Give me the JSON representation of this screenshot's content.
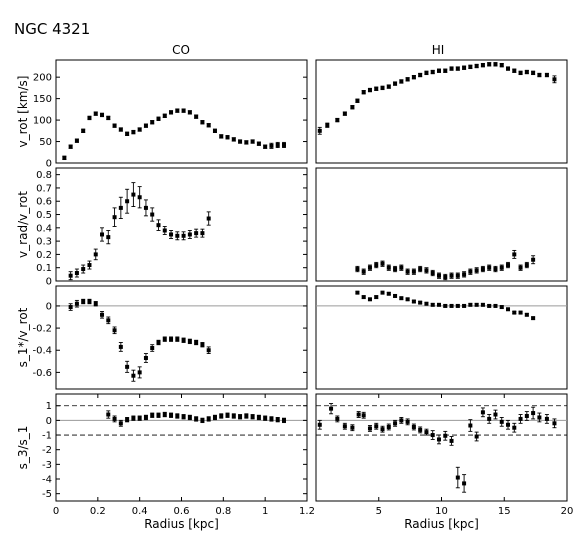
{
  "figure": {
    "title": "NGC 4321",
    "column_titles": [
      "CO",
      "HI"
    ],
    "row_ylabels": [
      "v_rot [km/s]",
      "v_rad/v_rot",
      "s_1*/v_rot",
      "s_3/s_1"
    ],
    "xlabel": "Radius [kpc]"
  },
  "chart_data": [
    {
      "id": "co-vrot",
      "type": "scatter",
      "column": "CO",
      "row": 0,
      "ylabel": "v_rot [km/s]",
      "xlim": [
        0,
        1.2
      ],
      "ylim": [
        0,
        240
      ],
      "yticks": [
        0,
        50,
        100,
        150,
        200
      ],
      "xticks": [],
      "x": [
        0.04,
        0.07,
        0.1,
        0.13,
        0.16,
        0.19,
        0.22,
        0.25,
        0.28,
        0.31,
        0.34,
        0.37,
        0.4,
        0.43,
        0.46,
        0.49,
        0.52,
        0.55,
        0.58,
        0.61,
        0.64,
        0.67,
        0.7,
        0.73,
        0.76,
        0.79,
        0.82,
        0.85,
        0.88,
        0.91,
        0.94,
        0.97,
        1.0,
        1.03,
        1.06,
        1.09
      ],
      "y": [
        12,
        38,
        52,
        75,
        105,
        115,
        112,
        105,
        87,
        78,
        68,
        72,
        78,
        87,
        95,
        103,
        110,
        118,
        122,
        122,
        118,
        108,
        95,
        88,
        75,
        62,
        60,
        55,
        50,
        48,
        50,
        45,
        38,
        40,
        42,
        42
      ],
      "yerr": [
        4,
        4,
        4,
        4,
        4,
        4,
        4,
        4,
        4,
        4,
        4,
        4,
        4,
        4,
        4,
        4,
        4,
        4,
        4,
        4,
        4,
        4,
        4,
        4,
        4,
        4,
        4,
        4,
        4,
        4,
        4,
        4,
        4,
        6,
        6,
        6
      ]
    },
    {
      "id": "hi-vrot",
      "type": "scatter",
      "column": "HI",
      "row": 0,
      "xlim": [
        0,
        20
      ],
      "ylim": [
        0,
        240
      ],
      "xticks": [],
      "yticks": [],
      "x": [
        0.3,
        0.9,
        1.7,
        2.3,
        2.9,
        3.3,
        3.8,
        4.3,
        4.8,
        5.3,
        5.8,
        6.3,
        6.8,
        7.3,
        7.8,
        8.3,
        8.8,
        9.3,
        9.8,
        10.3,
        10.8,
        11.3,
        11.8,
        12.3,
        12.8,
        13.3,
        13.8,
        14.3,
        14.8,
        15.3,
        15.8,
        16.3,
        16.8,
        17.3,
        17.8,
        18.4,
        19.0
      ],
      "y": [
        75,
        88,
        100,
        115,
        130,
        145,
        165,
        170,
        173,
        175,
        178,
        185,
        190,
        195,
        200,
        205,
        210,
        212,
        215,
        215,
        220,
        220,
        222,
        224,
        226,
        228,
        230,
        230,
        228,
        220,
        215,
        210,
        212,
        210,
        205,
        205,
        195
      ],
      "yerr": [
        8,
        5,
        4,
        4,
        4,
        4,
        4,
        4,
        4,
        4,
        4,
        4,
        4,
        4,
        4,
        4,
        4,
        4,
        4,
        4,
        4,
        4,
        4,
        4,
        4,
        4,
        4,
        4,
        4,
        4,
        4,
        4,
        4,
        4,
        4,
        4,
        8
      ]
    },
    {
      "id": "co-vrad",
      "type": "scatter",
      "column": "CO",
      "row": 1,
      "ylabel": "v_rad/v_rot",
      "xlim": [
        0,
        1.2
      ],
      "ylim": [
        0,
        0.85
      ],
      "yticks": [
        0.0,
        0.1,
        0.2,
        0.3,
        0.4,
        0.5,
        0.6,
        0.7,
        0.8
      ],
      "xticks": [],
      "x": [
        0.07,
        0.1,
        0.13,
        0.16,
        0.19,
        0.22,
        0.25,
        0.28,
        0.31,
        0.34,
        0.37,
        0.4,
        0.43,
        0.46,
        0.49,
        0.52,
        0.55,
        0.58,
        0.61,
        0.64,
        0.67,
        0.7,
        0.73
      ],
      "y": [
        0.04,
        0.06,
        0.09,
        0.12,
        0.2,
        0.35,
        0.33,
        0.48,
        0.55,
        0.6,
        0.65,
        0.63,
        0.55,
        0.5,
        0.42,
        0.38,
        0.35,
        0.34,
        0.34,
        0.35,
        0.36,
        0.36,
        0.47
      ],
      "yerr": [
        0.03,
        0.03,
        0.03,
        0.03,
        0.04,
        0.05,
        0.05,
        0.07,
        0.08,
        0.09,
        0.09,
        0.08,
        0.06,
        0.05,
        0.04,
        0.03,
        0.03,
        0.03,
        0.03,
        0.03,
        0.03,
        0.03,
        0.05
      ]
    },
    {
      "id": "hi-vrad",
      "type": "scatter",
      "column": "HI",
      "row": 1,
      "xlim": [
        0,
        20
      ],
      "ylim": [
        0,
        0.85
      ],
      "xticks": [],
      "yticks": [],
      "x": [
        3.3,
        3.8,
        4.3,
        4.8,
        5.3,
        5.8,
        6.3,
        6.8,
        7.3,
        7.8,
        8.3,
        8.8,
        9.3,
        9.8,
        10.3,
        10.8,
        11.3,
        11.8,
        12.3,
        12.8,
        13.3,
        13.8,
        14.3,
        14.8,
        15.3,
        15.8,
        16.3,
        16.8,
        17.3
      ],
      "y": [
        0.09,
        0.07,
        0.1,
        0.12,
        0.13,
        0.1,
        0.09,
        0.1,
        0.07,
        0.07,
        0.09,
        0.08,
        0.06,
        0.04,
        0.03,
        0.04,
        0.04,
        0.05,
        0.07,
        0.08,
        0.09,
        0.1,
        0.09,
        0.1,
        0.12,
        0.2,
        0.1,
        0.12,
        0.16
      ],
      "yerr": [
        0.02,
        0.02,
        0.02,
        0.02,
        0.02,
        0.02,
        0.02,
        0.02,
        0.02,
        0.02,
        0.02,
        0.02,
        0.02,
        0.02,
        0.02,
        0.02,
        0.02,
        0.02,
        0.02,
        0.02,
        0.02,
        0.02,
        0.02,
        0.02,
        0.02,
        0.03,
        0.02,
        0.02,
        0.03
      ]
    },
    {
      "id": "co-s1",
      "type": "scatter",
      "column": "CO",
      "row": 2,
      "ylabel": "s_1*/v_rot",
      "xlim": [
        0,
        1.2
      ],
      "ylim": [
        -0.75,
        0.18
      ],
      "yticks": [
        0.0,
        -0.2,
        -0.4,
        -0.6
      ],
      "xticks": [],
      "hline": 0,
      "x": [
        0.07,
        0.1,
        0.13,
        0.16,
        0.19,
        0.22,
        0.25,
        0.28,
        0.31,
        0.34,
        0.37,
        0.4,
        0.43,
        0.46,
        0.49,
        0.52,
        0.55,
        0.58,
        0.61,
        0.64,
        0.67,
        0.7,
        0.73
      ],
      "y": [
        -0.01,
        0.02,
        0.04,
        0.04,
        0.02,
        -0.08,
        -0.13,
        -0.22,
        -0.37,
        -0.55,
        -0.63,
        -0.6,
        -0.47,
        -0.38,
        -0.33,
        -0.3,
        -0.3,
        -0.3,
        -0.31,
        -0.32,
        -0.33,
        -0.35,
        -0.4
      ],
      "yerr": [
        0.03,
        0.03,
        0.02,
        0.02,
        0.02,
        0.03,
        0.03,
        0.03,
        0.04,
        0.05,
        0.05,
        0.05,
        0.04,
        0.03,
        0.02,
        0.02,
        0.02,
        0.02,
        0.02,
        0.02,
        0.02,
        0.02,
        0.03
      ]
    },
    {
      "id": "hi-s1",
      "type": "scatter",
      "column": "HI",
      "row": 2,
      "xlim": [
        0,
        20
      ],
      "ylim": [
        -0.75,
        0.18
      ],
      "xticks": [],
      "yticks": [],
      "hline": 0,
      "x": [
        3.3,
        3.8,
        4.3,
        4.8,
        5.3,
        5.8,
        6.3,
        6.8,
        7.3,
        7.8,
        8.3,
        8.8,
        9.3,
        9.8,
        10.3,
        10.8,
        11.3,
        11.8,
        12.3,
        12.8,
        13.3,
        13.8,
        14.3,
        14.8,
        15.3,
        15.8,
        16.3,
        16.8,
        17.3
      ],
      "y": [
        0.12,
        0.08,
        0.06,
        0.08,
        0.12,
        0.11,
        0.09,
        0.07,
        0.06,
        0.04,
        0.03,
        0.02,
        0.01,
        0.01,
        0.0,
        0.0,
        0.0,
        0.0,
        0.01,
        0.01,
        0.01,
        0.0,
        0.0,
        -0.01,
        -0.03,
        -0.06,
        -0.06,
        -0.08,
        -0.11
      ],
      "yerr": [
        0.01,
        0.01,
        0.01,
        0.01,
        0.01,
        0.01,
        0.01,
        0.01,
        0.01,
        0.01,
        0.01,
        0.01,
        0.01,
        0.01,
        0.01,
        0.01,
        0.01,
        0.01,
        0.01,
        0.01,
        0.01,
        0.01,
        0.01,
        0.01,
        0.01,
        0.01,
        0.01,
        0.01,
        0.01
      ]
    },
    {
      "id": "co-s3",
      "type": "scatter",
      "column": "CO",
      "row": 3,
      "ylabel": "s_3/s_1",
      "xlabel": "Radius [kpc]",
      "xlim": [
        0,
        1.2
      ],
      "ylim": [
        -5.5,
        1.8
      ],
      "yticks": [
        1,
        0,
        -1,
        -2,
        -3,
        -4,
        -5
      ],
      "xticks": [
        0.0,
        0.2,
        0.4,
        0.6,
        0.8,
        1.0,
        1.2
      ],
      "hline": 0,
      "dashed_hlines": [
        1,
        -1
      ],
      "x": [
        0.25,
        0.28,
        0.31,
        0.34,
        0.37,
        0.4,
        0.43,
        0.46,
        0.49,
        0.52,
        0.55,
        0.58,
        0.61,
        0.64,
        0.67,
        0.7,
        0.73,
        0.76,
        0.79,
        0.82,
        0.85,
        0.88,
        0.91,
        0.94,
        0.97,
        1.0,
        1.03,
        1.06,
        1.09
      ],
      "y": [
        0.4,
        0.1,
        -0.2,
        0.05,
        0.15,
        0.15,
        0.2,
        0.35,
        0.35,
        0.4,
        0.35,
        0.3,
        0.25,
        0.2,
        0.1,
        0.0,
        0.1,
        0.2,
        0.3,
        0.35,
        0.3,
        0.25,
        0.3,
        0.25,
        0.2,
        0.15,
        0.1,
        0.05,
        0.0
      ],
      "yerr": [
        0.25,
        0.2,
        0.2,
        0.15,
        0.15,
        0.15,
        0.15,
        0.15,
        0.15,
        0.15,
        0.15,
        0.15,
        0.15,
        0.15,
        0.15,
        0.15,
        0.15,
        0.15,
        0.15,
        0.15,
        0.15,
        0.15,
        0.15,
        0.15,
        0.15,
        0.15,
        0.15,
        0.15,
        0.15
      ]
    },
    {
      "id": "hi-s3",
      "type": "scatter",
      "column": "HI",
      "row": 3,
      "xlabel": "Radius [kpc]",
      "xlim": [
        0,
        20
      ],
      "ylim": [
        -5.5,
        1.8
      ],
      "yticks": [],
      "xticks": [
        5,
        10,
        15,
        20
      ],
      "hline": 0,
      "dashed_hlines": [
        1,
        -1
      ],
      "x": [
        0.3,
        1.2,
        1.7,
        2.3,
        2.9,
        3.4,
        3.8,
        4.3,
        4.8,
        5.3,
        5.8,
        6.3,
        6.8,
        7.3,
        7.8,
        8.3,
        8.8,
        9.3,
        9.8,
        10.3,
        10.8,
        11.3,
        11.8,
        12.3,
        12.8,
        13.3,
        13.8,
        14.3,
        14.8,
        15.3,
        15.8,
        16.3,
        16.8,
        17.3,
        17.8,
        18.4,
        19.0
      ],
      "y": [
        -0.3,
        0.8,
        0.1,
        -0.4,
        -0.5,
        0.4,
        0.35,
        -0.55,
        -0.4,
        -0.6,
        -0.45,
        -0.2,
        0.0,
        -0.1,
        -0.45,
        -0.65,
        -0.8,
        -1.0,
        -1.3,
        -1.05,
        -1.4,
        -3.9,
        -4.3,
        -0.35,
        -1.1,
        0.55,
        0.1,
        0.4,
        -0.1,
        -0.3,
        -0.5,
        0.1,
        0.3,
        0.5,
        0.2,
        0.1,
        -0.2
      ],
      "yerr": [
        0.3,
        0.35,
        0.2,
        0.2,
        0.2,
        0.2,
        0.2,
        0.2,
        0.2,
        0.2,
        0.2,
        0.2,
        0.2,
        0.2,
        0.2,
        0.2,
        0.2,
        0.3,
        0.3,
        0.3,
        0.3,
        0.7,
        0.6,
        0.4,
        0.3,
        0.3,
        0.3,
        0.3,
        0.3,
        0.3,
        0.3,
        0.3,
        0.3,
        0.4,
        0.3,
        0.3,
        0.3
      ]
    }
  ]
}
